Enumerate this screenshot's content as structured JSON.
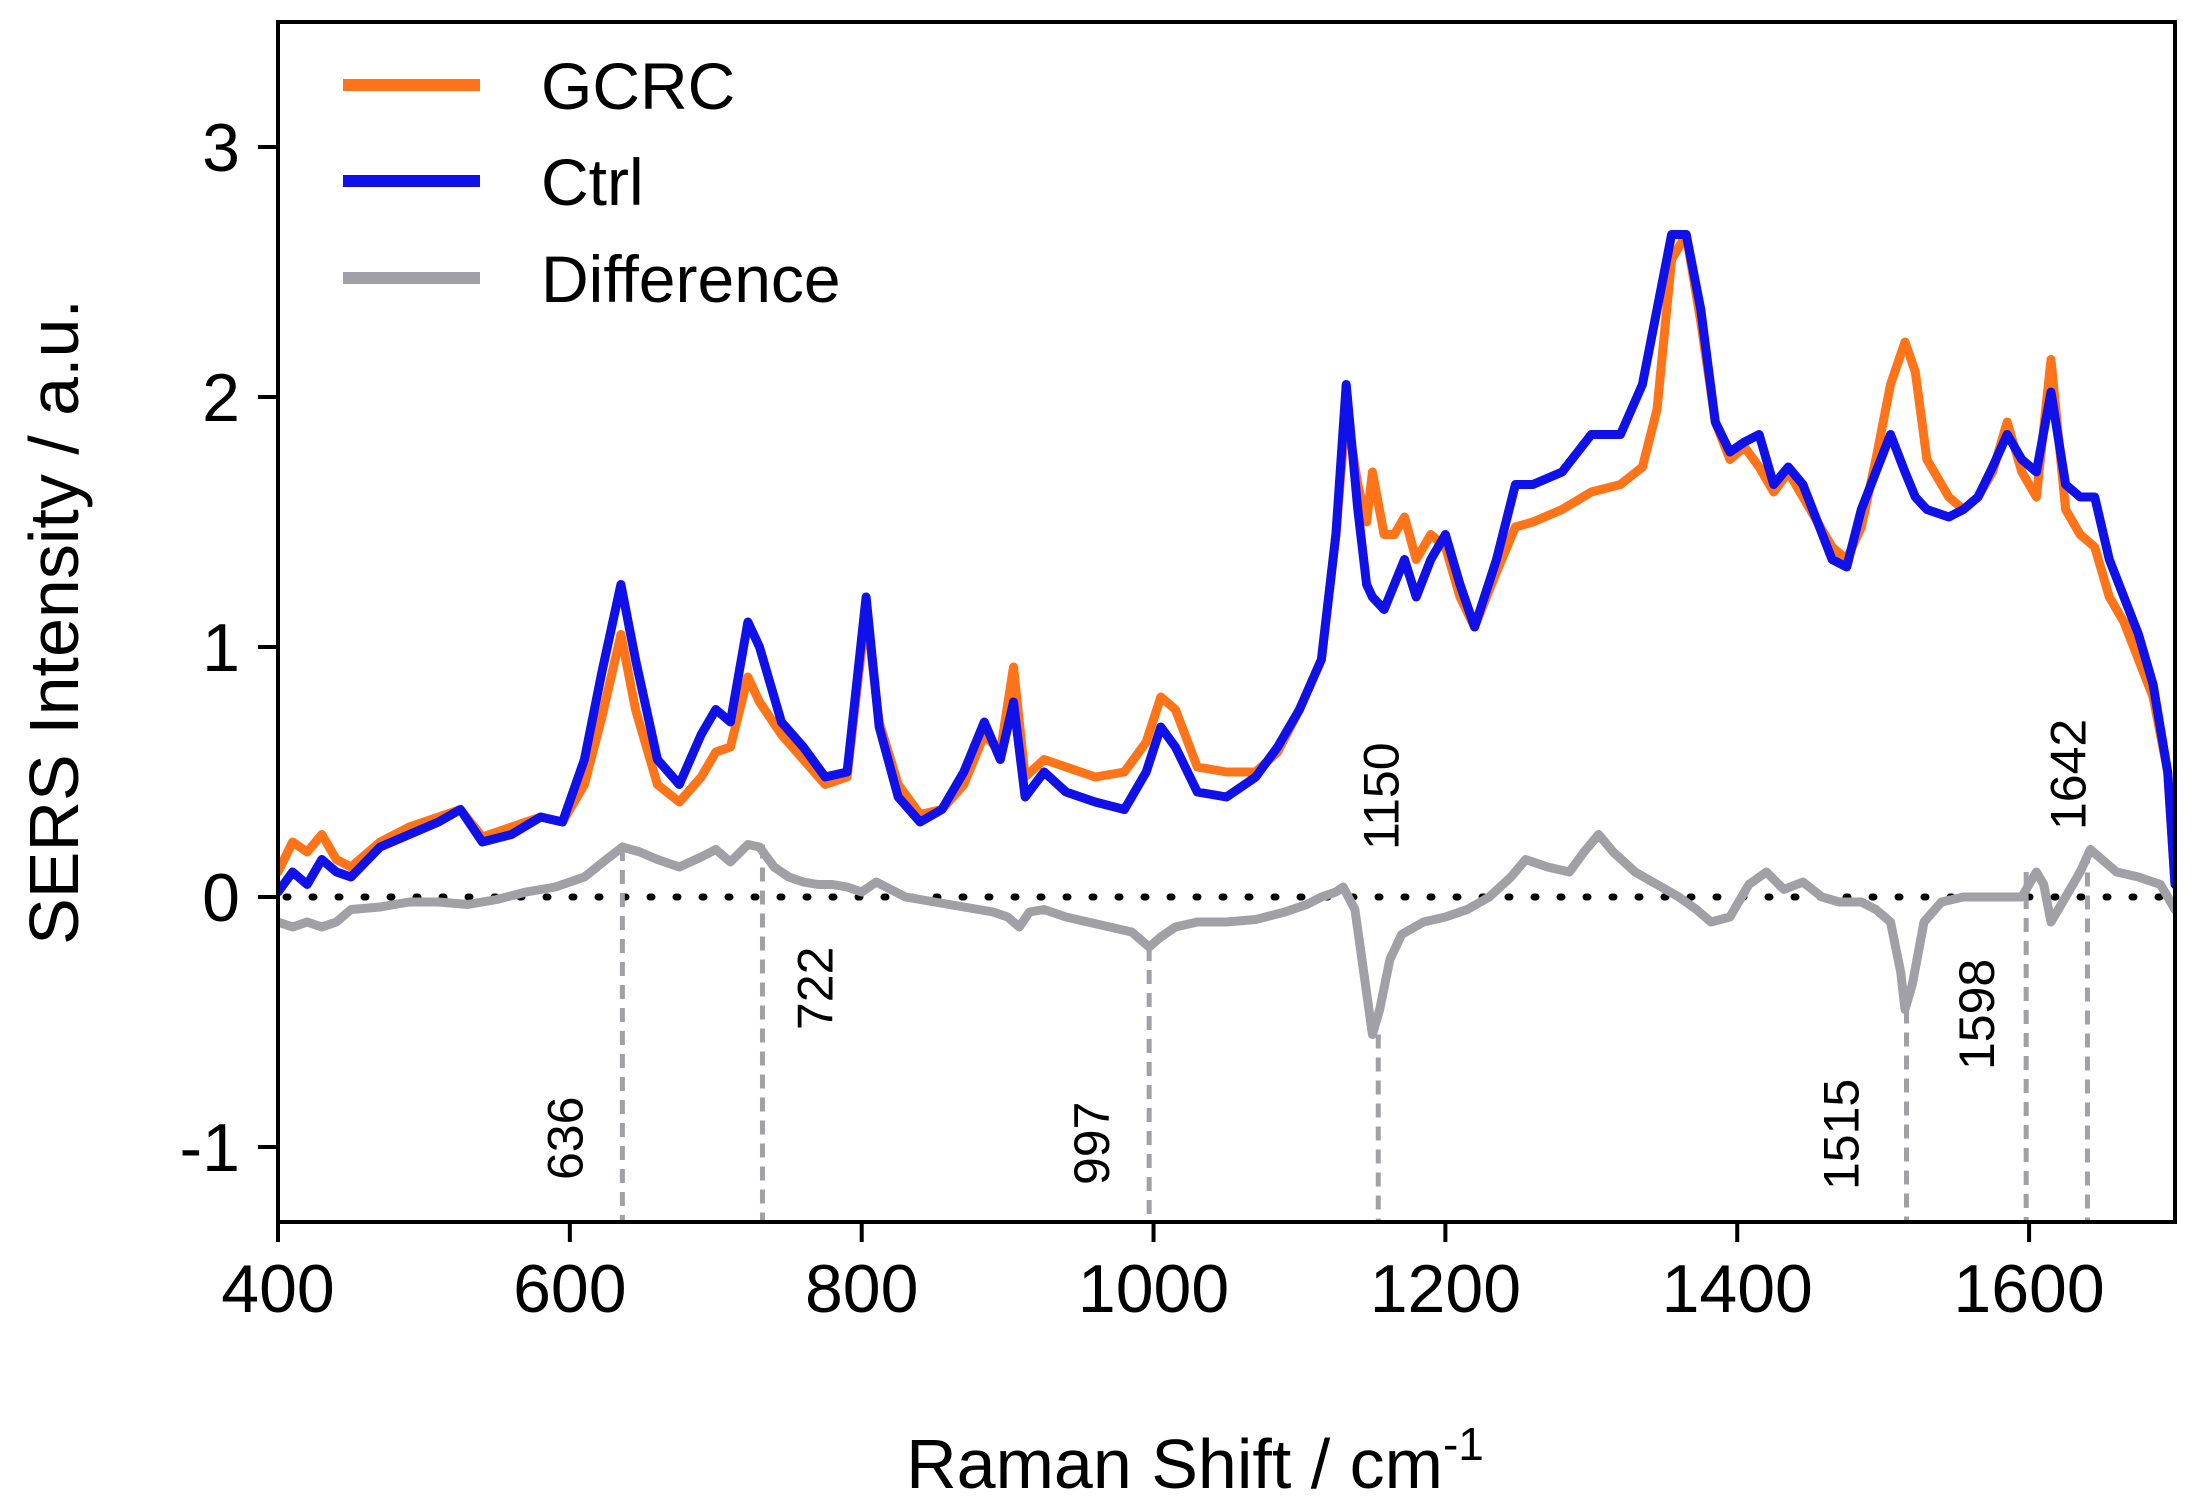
{
  "chart_data": {
    "type": "line",
    "xlabel": "Raman Shift / cm",
    "xlabel_superscript": "-1",
    "ylabel": "SERS Intensity / a.u.",
    "xlim": [
      400,
      1700
    ],
    "ylim": [
      -1.3,
      3.5
    ],
    "xticks": [
      400,
      600,
      800,
      1000,
      1200,
      1400,
      1600
    ],
    "yticks": [
      -1,
      0,
      1,
      2,
      3
    ],
    "xtick_labels": [
      "400",
      "600",
      "800",
      "1000",
      "1200",
      "1400",
      "1600"
    ],
    "ytick_labels": [
      "-1",
      "0",
      "1",
      "2",
      "3"
    ],
    "legend_position": "top-left",
    "zero_line": "dotted",
    "series": [
      {
        "name": "GCRC",
        "color": "#ff7418",
        "x": [
          400,
          410,
          420,
          430,
          440,
          450,
          470,
          490,
          510,
          525,
          540,
          560,
          580,
          595,
          610,
          622,
          635,
          645,
          660,
          675,
          690,
          700,
          710,
          722,
          730,
          745,
          760,
          775,
          790,
          803,
          812,
          825,
          840,
          855,
          870,
          884,
          895,
          904,
          912,
          925,
          940,
          960,
          980,
          995,
          1005,
          1015,
          1030,
          1050,
          1070,
          1085,
          1100,
          1115,
          1125,
          1132,
          1140,
          1146,
          1150,
          1158,
          1165,
          1172,
          1180,
          1190,
          1200,
          1210,
          1220,
          1235,
          1248,
          1260,
          1280,
          1300,
          1320,
          1335,
          1345,
          1355,
          1365,
          1375,
          1385,
          1395,
          1405,
          1415,
          1425,
          1435,
          1445,
          1455,
          1465,
          1475,
          1485,
          1495,
          1505,
          1515,
          1522,
          1530,
          1545,
          1555,
          1565,
          1575,
          1585,
          1595,
          1605,
          1615,
          1625,
          1635,
          1645,
          1655,
          1665,
          1675,
          1685,
          1695,
          1700
        ],
        "values": [
          0.1,
          0.22,
          0.18,
          0.25,
          0.15,
          0.12,
          0.22,
          0.28,
          0.32,
          0.35,
          0.24,
          0.28,
          0.32,
          0.3,
          0.45,
          0.72,
          1.05,
          0.75,
          0.45,
          0.38,
          0.48,
          0.58,
          0.6,
          0.88,
          0.78,
          0.65,
          0.55,
          0.45,
          0.48,
          1.15,
          0.7,
          0.45,
          0.33,
          0.35,
          0.45,
          0.65,
          0.58,
          0.92,
          0.48,
          0.55,
          0.52,
          0.48,
          0.5,
          0.62,
          0.8,
          0.75,
          0.52,
          0.5,
          0.5,
          0.58,
          0.75,
          0.95,
          1.45,
          1.95,
          1.65,
          1.5,
          1.7,
          1.45,
          1.45,
          1.52,
          1.35,
          1.45,
          1.4,
          1.2,
          1.08,
          1.3,
          1.48,
          1.5,
          1.55,
          1.62,
          1.65,
          1.72,
          1.95,
          2.55,
          2.65,
          2.3,
          1.9,
          1.75,
          1.8,
          1.72,
          1.62,
          1.7,
          1.6,
          1.5,
          1.4,
          1.35,
          1.48,
          1.75,
          2.05,
          2.22,
          2.1,
          1.75,
          1.6,
          1.55,
          1.6,
          1.7,
          1.9,
          1.7,
          1.6,
          2.15,
          1.55,
          1.45,
          1.4,
          1.2,
          1.1,
          0.95,
          0.8,
          0.5,
          0.05
        ]
      },
      {
        "name": "Ctrl",
        "color": "#1010e8",
        "x": [
          400,
          410,
          420,
          430,
          440,
          450,
          470,
          490,
          510,
          525,
          540,
          560,
          580,
          595,
          610,
          622,
          635,
          645,
          660,
          675,
          690,
          700,
          710,
          722,
          730,
          745,
          760,
          775,
          790,
          803,
          812,
          825,
          840,
          855,
          870,
          884,
          895,
          904,
          912,
          925,
          940,
          960,
          980,
          995,
          1005,
          1015,
          1030,
          1050,
          1070,
          1085,
          1100,
          1115,
          1125,
          1132,
          1140,
          1146,
          1150,
          1158,
          1165,
          1172,
          1180,
          1190,
          1200,
          1210,
          1220,
          1235,
          1248,
          1260,
          1280,
          1300,
          1320,
          1335,
          1345,
          1355,
          1365,
          1375,
          1385,
          1395,
          1405,
          1415,
          1425,
          1435,
          1445,
          1455,
          1465,
          1475,
          1485,
          1495,
          1505,
          1515,
          1522,
          1530,
          1545,
          1555,
          1565,
          1575,
          1585,
          1595,
          1605,
          1615,
          1625,
          1635,
          1645,
          1655,
          1665,
          1675,
          1685,
          1695,
          1700
        ],
        "values": [
          0.02,
          0.1,
          0.05,
          0.15,
          0.1,
          0.08,
          0.2,
          0.25,
          0.3,
          0.35,
          0.22,
          0.25,
          0.32,
          0.3,
          0.55,
          0.9,
          1.25,
          0.95,
          0.55,
          0.45,
          0.65,
          0.75,
          0.7,
          1.1,
          1.0,
          0.7,
          0.6,
          0.48,
          0.5,
          1.2,
          0.68,
          0.4,
          0.3,
          0.35,
          0.5,
          0.7,
          0.55,
          0.78,
          0.4,
          0.5,
          0.42,
          0.38,
          0.35,
          0.5,
          0.68,
          0.6,
          0.42,
          0.4,
          0.48,
          0.6,
          0.75,
          0.95,
          1.45,
          2.05,
          1.55,
          1.25,
          1.2,
          1.15,
          1.25,
          1.35,
          1.2,
          1.35,
          1.45,
          1.25,
          1.08,
          1.35,
          1.65,
          1.65,
          1.7,
          1.85,
          1.85,
          2.05,
          2.35,
          2.65,
          2.65,
          2.35,
          1.9,
          1.78,
          1.82,
          1.85,
          1.65,
          1.72,
          1.65,
          1.5,
          1.35,
          1.32,
          1.55,
          1.7,
          1.85,
          1.7,
          1.6,
          1.55,
          1.52,
          1.55,
          1.6,
          1.72,
          1.85,
          1.75,
          1.7,
          2.02,
          1.65,
          1.6,
          1.6,
          1.35,
          1.2,
          1.05,
          0.85,
          0.5,
          0.05
        ]
      },
      {
        "name": "Difference",
        "color": "#a0a0a6",
        "x": [
          400,
          410,
          420,
          430,
          440,
          450,
          470,
          490,
          510,
          530,
          550,
          570,
          590,
          610,
          625,
          636,
          648,
          660,
          675,
          690,
          700,
          710,
          722,
          730,
          740,
          750,
          760,
          770,
          780,
          790,
          800,
          810,
          820,
          830,
          850,
          870,
          890,
          900,
          908,
          915,
          925,
          940,
          955,
          970,
          985,
          997,
          1005,
          1015,
          1030,
          1050,
          1070,
          1090,
          1105,
          1115,
          1125,
          1130,
          1138,
          1144,
          1150,
          1155,
          1162,
          1170,
          1185,
          1200,
          1215,
          1230,
          1245,
          1255,
          1270,
          1285,
          1295,
          1305,
          1315,
          1330,
          1345,
          1360,
          1372,
          1382,
          1395,
          1408,
          1420,
          1432,
          1445,
          1458,
          1470,
          1485,
          1495,
          1505,
          1512,
          1515,
          1520,
          1528,
          1540,
          1555,
          1570,
          1585,
          1595,
          1600,
          1605,
          1610,
          1615,
          1625,
          1635,
          1642,
          1650,
          1660,
          1675,
          1690,
          1700
        ],
        "values": [
          -0.1,
          -0.12,
          -0.1,
          -0.12,
          -0.1,
          -0.05,
          -0.04,
          -0.02,
          -0.02,
          -0.03,
          -0.01,
          0.02,
          0.04,
          0.08,
          0.15,
          0.2,
          0.18,
          0.15,
          0.12,
          0.16,
          0.19,
          0.14,
          0.21,
          0.2,
          0.12,
          0.08,
          0.06,
          0.05,
          0.05,
          0.04,
          0.02,
          0.06,
          0.03,
          0.0,
          -0.02,
          -0.04,
          -0.06,
          -0.08,
          -0.12,
          -0.06,
          -0.05,
          -0.08,
          -0.1,
          -0.12,
          -0.14,
          -0.2,
          -0.16,
          -0.12,
          -0.1,
          -0.1,
          -0.09,
          -0.06,
          -0.03,
          0.0,
          0.02,
          0.04,
          -0.05,
          -0.3,
          -0.55,
          -0.45,
          -0.25,
          -0.15,
          -0.1,
          -0.08,
          -0.05,
          0.0,
          0.08,
          0.15,
          0.12,
          0.1,
          0.18,
          0.25,
          0.18,
          0.1,
          0.05,
          0.0,
          -0.05,
          -0.1,
          -0.08,
          0.05,
          0.1,
          0.03,
          0.06,
          0.0,
          -0.02,
          -0.02,
          -0.05,
          -0.1,
          -0.3,
          -0.45,
          -0.35,
          -0.1,
          -0.02,
          0.0,
          0.0,
          0.0,
          0.0,
          0.05,
          0.1,
          0.05,
          -0.1,
          0.0,
          0.1,
          0.19,
          0.15,
          0.1,
          0.08,
          0.05,
          -0.05
        ]
      }
    ],
    "annotations": [
      {
        "label": "636",
        "x": 636,
        "y_top": 0.2
      },
      {
        "label": "722",
        "x": 732,
        "y_top": 0.21
      },
      {
        "label": "997",
        "x": 997,
        "y_top": -0.2
      },
      {
        "label": "1150",
        "x": 1154,
        "y_top": -0.55
      },
      {
        "label": "1515",
        "x": 1516,
        "y_top": -0.45
      },
      {
        "label": "1598",
        "x": 1598,
        "y_top": 0.1
      },
      {
        "label": "1642",
        "x": 1640,
        "y_top": 0.19
      }
    ]
  }
}
